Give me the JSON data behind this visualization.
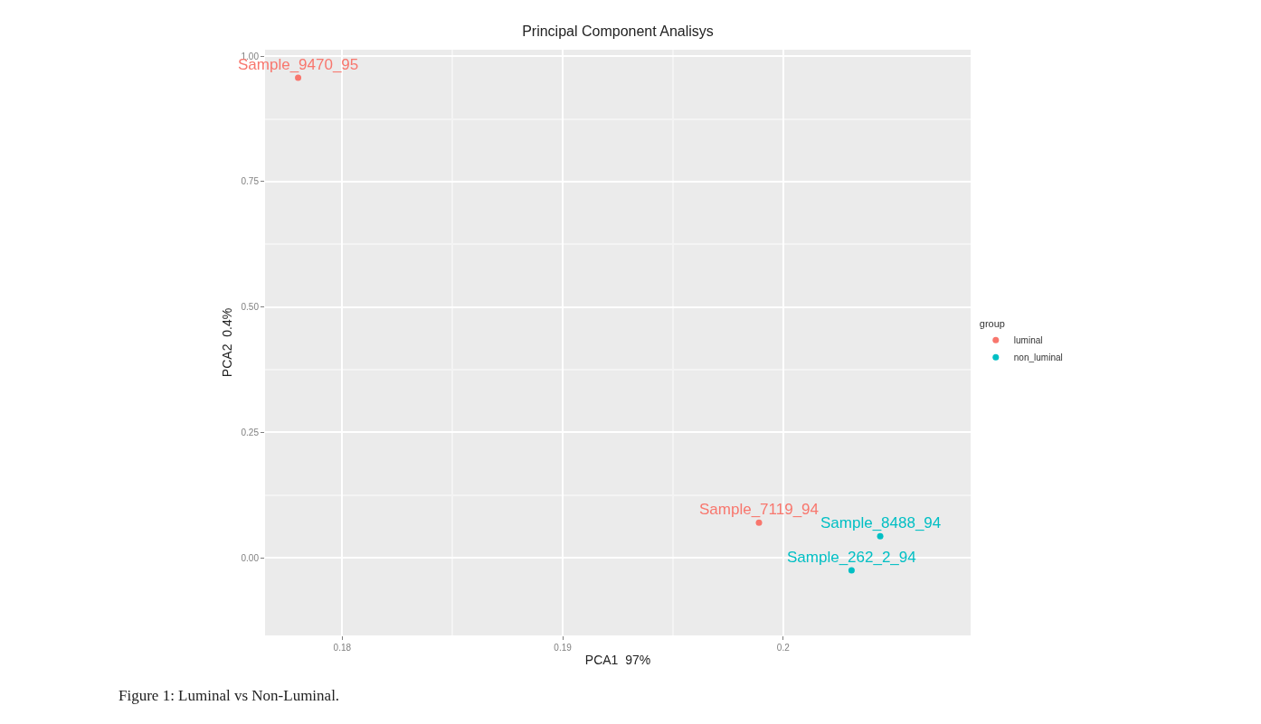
{
  "chart_data": {
    "type": "scatter",
    "title": "Principal Component Analisys",
    "xlabel": "PCA1  97%",
    "ylabel": "PCA2  0.4%",
    "legend_title": "group",
    "series": [
      {
        "name": "luminal",
        "color": "#f8766d",
        "x": [
          0.178,
          0.1989
        ],
        "values": [
          0.957,
          0.07
        ]
      },
      {
        "name": "non_luminal",
        "color": "#00bfc4",
        "x": [
          0.2044,
          0.2031
        ],
        "values": [
          0.043,
          -0.025
        ]
      }
    ],
    "xlim": [
      0.1765,
      0.2085
    ],
    "xticks": [
      0.18,
      0.19,
      0.2
    ],
    "ylim": [
      -0.155,
      1.013
    ],
    "yticks": [
      {
        "value": 0,
        "label": "0.00"
      },
      {
        "value": 0.25,
        "label": "0.25"
      },
      {
        "value": 0.5,
        "label": "0.50"
      },
      {
        "value": 0.75,
        "label": "0.75"
      },
      {
        "value": 1,
        "label": "1.00"
      }
    ],
    "grid": true,
    "legend": "right",
    "marker": "circle",
    "annotations": [
      {
        "text": "Sample_9470_95",
        "x": 0.178,
        "y": 0.957
      },
      {
        "text": "Sample_7119_94",
        "x": 0.1989,
        "y": 0.07
      },
      {
        "text": "Sample_8488_94",
        "x": 0.2044,
        "y": 0.043
      },
      {
        "text": "Sample_262_2_94",
        "x": 0.2031,
        "y": -0.025
      },
      "Figure 1: Luminal vs Non-Luminal."
    ]
  }
}
